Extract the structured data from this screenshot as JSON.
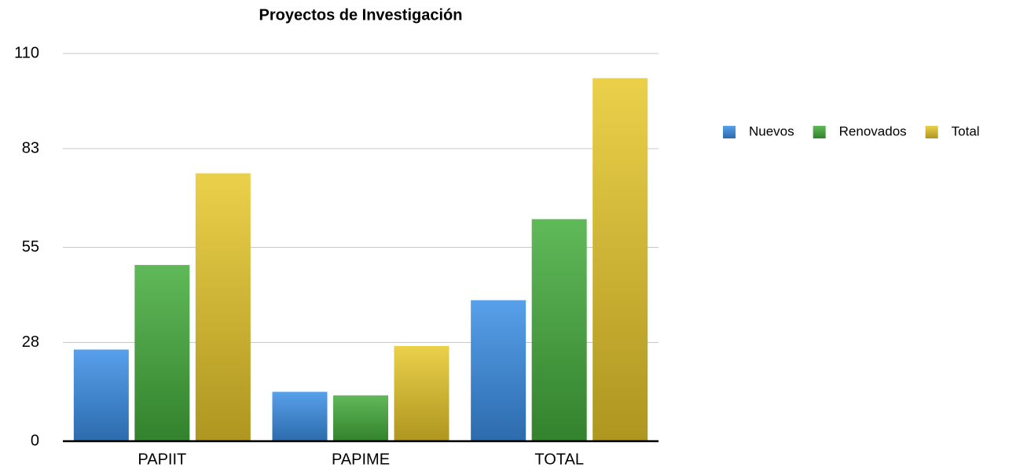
{
  "chart_data": {
    "type": "bar",
    "title": "Proyectos de Investigación",
    "categories": [
      "PAPIIT",
      "PAPIME",
      "TOTAL"
    ],
    "series": [
      {
        "name": "Nuevos",
        "color": "#3b8fe6",
        "values": [
          26,
          14,
          40
        ]
      },
      {
        "name": "Renovados",
        "color": "#44ad3c",
        "values": [
          50,
          13,
          63
        ]
      },
      {
        "name": "Total",
        "color": "#e8c82a",
        "values": [
          76,
          27,
          103
        ]
      }
    ],
    "ylim": [
      0,
      110
    ],
    "yticks": [
      0,
      28,
      55,
      83,
      110
    ],
    "grid": true,
    "legend": "right"
  }
}
